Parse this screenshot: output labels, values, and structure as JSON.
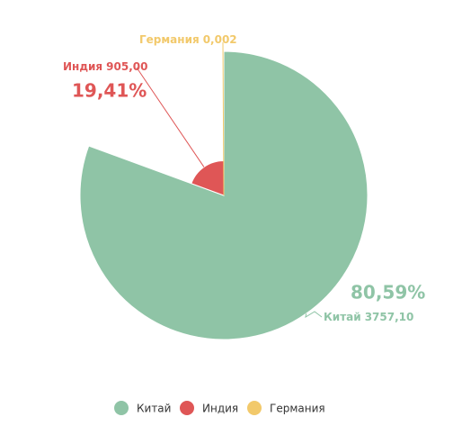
{
  "chart_data": {
    "type": "pie",
    "series": [
      {
        "name": "Китай",
        "color": "#8fc4a6",
        "values": [
          3757.1
        ],
        "value_labels": [
          "3757,10"
        ],
        "percents": [
          80.59
        ],
        "percent_labels": [
          "80,59%"
        ]
      },
      {
        "name": "Индия",
        "color": "#df5656",
        "values": [
          905
        ],
        "value_labels": [
          "905,00"
        ],
        "percents": [
          19.41
        ],
        "percent_labels": [
          "19,41%"
        ]
      },
      {
        "name": "Германия",
        "color": "#f2c96b",
        "values": [
          0.002
        ],
        "value_labels": [
          "0,002"
        ],
        "percents": [
          null
        ],
        "percent_labels": [
          null
        ]
      }
    ],
    "legend": "bottom"
  }
}
